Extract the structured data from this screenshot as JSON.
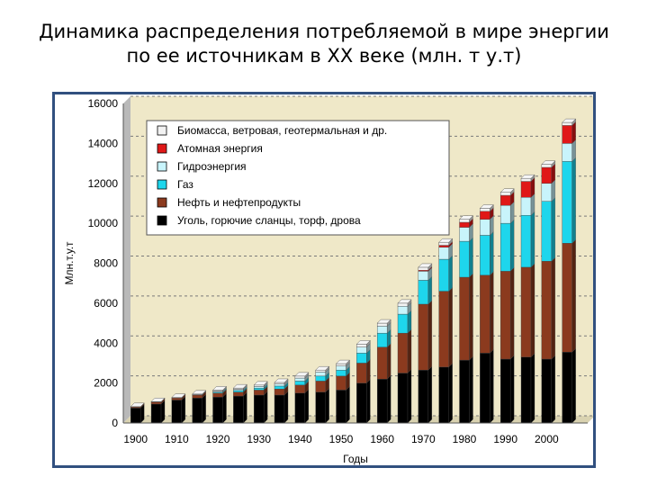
{
  "title": {
    "line1": "Динамика распределения потребляемой в мире энергии",
    "line2": "по ее источникам в XX веке (млн. т у.т)"
  },
  "chart_data": {
    "type": "bar",
    "stacked": true,
    "title": "Динамика распределения потребляемой в мире энергии по ее источникам в XX веке (млн. т у.т)",
    "xlabel": "Годы",
    "ylabel": "Млн.т.у.т",
    "ylim": [
      0,
      16000
    ],
    "yticks": [
      0,
      2000,
      4000,
      6000,
      8000,
      10000,
      12000,
      14000,
      16000
    ],
    "xtick_labels": [
      "1900",
      "1910",
      "1920",
      "1930",
      "1940",
      "1950",
      "1960",
      "1970",
      "1980",
      "1990",
      "2000"
    ],
    "categories": [
      1900,
      1905,
      1910,
      1915,
      1920,
      1925,
      1930,
      1935,
      1940,
      1945,
      1950,
      1955,
      1960,
      1965,
      1970,
      1975,
      1980,
      1985,
      1990,
      1995,
      2000,
      2005
    ],
    "grid": "horizontal-dashed",
    "legend_position": "top-left",
    "series": [
      {
        "name": "Уголь, горючие сланцы, торф, дрова",
        "color": "#000000",
        "values": [
          750,
          950,
          1150,
          1250,
          1300,
          1350,
          1400,
          1400,
          1500,
          1550,
          1650,
          2000,
          2200,
          2500,
          2650,
          2800,
          3150,
          3500,
          3200,
          3300,
          3200,
          3550
        ]
      },
      {
        "name": "Нефть и нефтепродукты",
        "color": "#8b3a1e",
        "values": [
          50,
          100,
          100,
          150,
          200,
          200,
          250,
          300,
          400,
          550,
          700,
          1000,
          1600,
          2000,
          3300,
          3800,
          4150,
          3900,
          4400,
          4500,
          4900,
          5450
        ]
      },
      {
        "name": "Газ",
        "color": "#1ed6ec",
        "values": [
          0,
          0,
          0,
          0,
          50,
          80,
          100,
          150,
          200,
          250,
          300,
          500,
          700,
          950,
          1200,
          1600,
          1800,
          2000,
          2400,
          2600,
          3000,
          4100
        ]
      },
      {
        "name": "Гидроэнергия",
        "color": "#c8f4fb",
        "values": [
          0,
          0,
          0,
          20,
          50,
          60,
          80,
          100,
          150,
          200,
          200,
          300,
          350,
          400,
          450,
          600,
          700,
          800,
          900,
          900,
          900,
          900
        ]
      },
      {
        "name": "Атомная энергия",
        "color": "#e01818",
        "values": [
          0,
          0,
          0,
          0,
          0,
          0,
          0,
          0,
          0,
          0,
          0,
          0,
          0,
          0,
          50,
          100,
          250,
          400,
          500,
          800,
          800,
          900
        ]
      },
      {
        "name": "Биомасса, ветровая, геотермальная и др.",
        "color": "#f2f2f2",
        "values": [
          20,
          20,
          30,
          30,
          50,
          60,
          70,
          80,
          100,
          100,
          120,
          150,
          150,
          150,
          150,
          150,
          150,
          150,
          150,
          150,
          150,
          150
        ]
      }
    ]
  }
}
